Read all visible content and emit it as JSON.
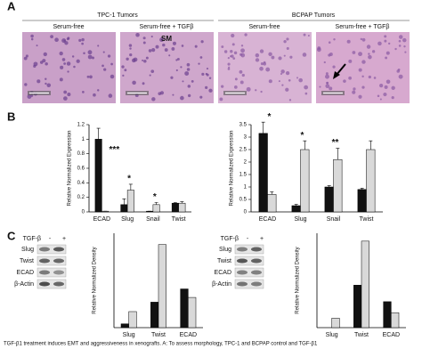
{
  "panels": [
    "A",
    "B",
    "C"
  ],
  "panel_a": {
    "groups": [
      "TPC-1 Tumors",
      "BCPAP Tumors"
    ],
    "conditions": [
      "Serum-free",
      "Serum-free + TGFβ",
      "Serum-free",
      "Serum-free + TGFβ"
    ],
    "annotation": "SM"
  },
  "blots": [
    {
      "treatment": "TGF-β",
      "lanes": [
        "-",
        "+"
      ],
      "rows": [
        "Slug",
        "Twist",
        "ECAD",
        "β-Actin"
      ]
    },
    {
      "treatment": "TGF-β",
      "lanes": [
        "-",
        "+"
      ],
      "rows": [
        "Slug",
        "Twist",
        "ECAD",
        "β-Actin"
      ]
    }
  ],
  "caption": "TGF-β1 treatment induces EMT and aggressiveness in xenografts. A: To assess morphology, TPC-1 and BCPAP control and TGF-β1",
  "chart_data": [
    {
      "type": "bar",
      "y_label": "Relative Normalized Expression",
      "categories": [
        "ECAD",
        "Slug",
        "Snail",
        "Twist"
      ],
      "series": [
        {
          "color": "#111111",
          "values": [
            1.0,
            0.1,
            0.01,
            0.12
          ],
          "errors": [
            0.15,
            0.08,
            0,
            0.01
          ]
        },
        {
          "color": "#d9d9d9",
          "values": [
            0.01,
            0.3,
            0.1,
            0.12
          ],
          "errors": [
            0,
            0.08,
            0.03,
            0.02
          ]
        }
      ],
      "significance": [
        "***",
        "*",
        "*",
        null
      ],
      "ylim": [
        0,
        1.2
      ],
      "yticks": [
        0,
        0.2,
        0.4,
        0.6,
        0.8,
        1,
        1.2
      ]
    },
    {
      "type": "bar",
      "y_label": "Relative Normalized Expression",
      "categories": [
        "ECAD",
        "Slug",
        "Snail",
        "Twist"
      ],
      "series": [
        {
          "color": "#111111",
          "values": [
            3.15,
            0.25,
            1.0,
            0.9
          ],
          "errors": [
            0.45,
            0.05,
            0.05,
            0.05
          ]
        },
        {
          "color": "#d9d9d9",
          "values": [
            0.7,
            2.5,
            2.1,
            2.5
          ],
          "errors": [
            0.1,
            0.35,
            0.45,
            0.35
          ]
        }
      ],
      "significance": [
        "*",
        "*",
        "**",
        null
      ],
      "ylim": [
        0,
        3.5
      ],
      "yticks": [
        0,
        0.5,
        1,
        1.5,
        2,
        2.5,
        3,
        3.5
      ]
    },
    {
      "type": "bar",
      "y_label": "Relative Normalized Density",
      "categories": [
        "Slug",
        "Twist",
        "ECAD"
      ],
      "series": [
        {
          "color": "#111111",
          "values": [
            0.04,
            0.27,
            0.41
          ]
        },
        {
          "color": "#d9d9d9",
          "values": [
            0.17,
            0.88,
            0.32
          ]
        }
      ],
      "ylim": [
        0,
        1
      ]
    },
    {
      "type": "bar",
      "y_label": "Relative Normalized Density",
      "categories": [
        "Slug",
        "Twist",
        "ECAD"
      ],
      "series": [
        {
          "color": "#111111",
          "values": [
            0,
            0.54,
            0.33
          ]
        },
        {
          "color": "#d9d9d9",
          "values": [
            0.12,
            1.1,
            0.19
          ]
        }
      ],
      "ylim": [
        0,
        1.2
      ]
    }
  ]
}
